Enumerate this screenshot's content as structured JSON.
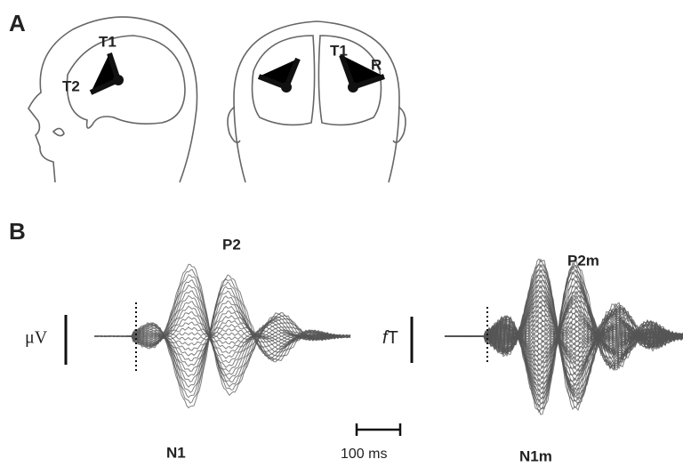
{
  "panel_a": {
    "label": "A",
    "side_view": {
      "labels": [
        "T1",
        "T2"
      ]
    },
    "back_view": {
      "labels": [
        "T1",
        "R"
      ]
    }
  },
  "panel_b": {
    "label": "B",
    "eeg": {
      "unit": "μV",
      "peaks": [
        "P2",
        "N1"
      ]
    },
    "meg": {
      "unit": {
        "prefix": "f",
        "base": "T"
      },
      "peaks": [
        "P2m",
        "N1m"
      ]
    },
    "scale_bar": "100 ms"
  }
}
